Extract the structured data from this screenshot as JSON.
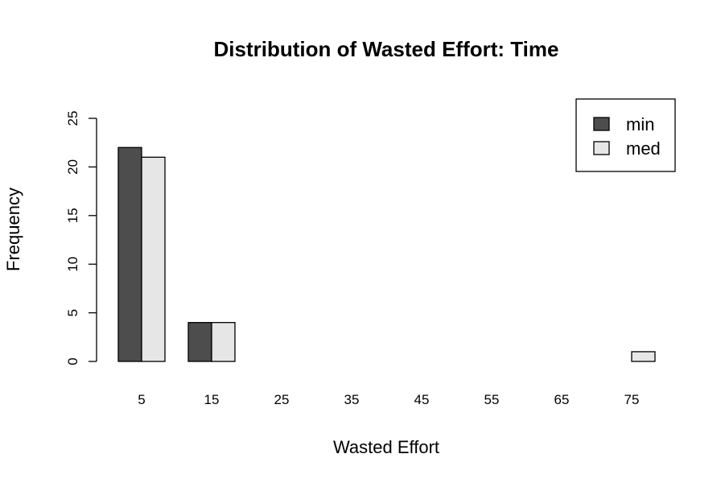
{
  "chart_data": {
    "type": "bar",
    "title": "Distribution of Wasted Effort: Time",
    "xlabel": "Wasted Effort",
    "ylabel": "Frequency",
    "categories": [
      "5",
      "15",
      "25",
      "35",
      "45",
      "55",
      "65",
      "75"
    ],
    "series": [
      {
        "name": "min",
        "values": [
          22,
          4,
          0,
          0,
          0,
          0,
          0,
          0
        ],
        "color": "#4d4d4d"
      },
      {
        "name": "med",
        "values": [
          21,
          4,
          0,
          0,
          0,
          0,
          0,
          1
        ],
        "color": "#e6e6e6"
      }
    ],
    "ylim": [
      0,
      25
    ],
    "yticks": [
      0,
      5,
      10,
      15,
      20,
      25
    ],
    "grid": false,
    "legend_position": "top-right"
  }
}
